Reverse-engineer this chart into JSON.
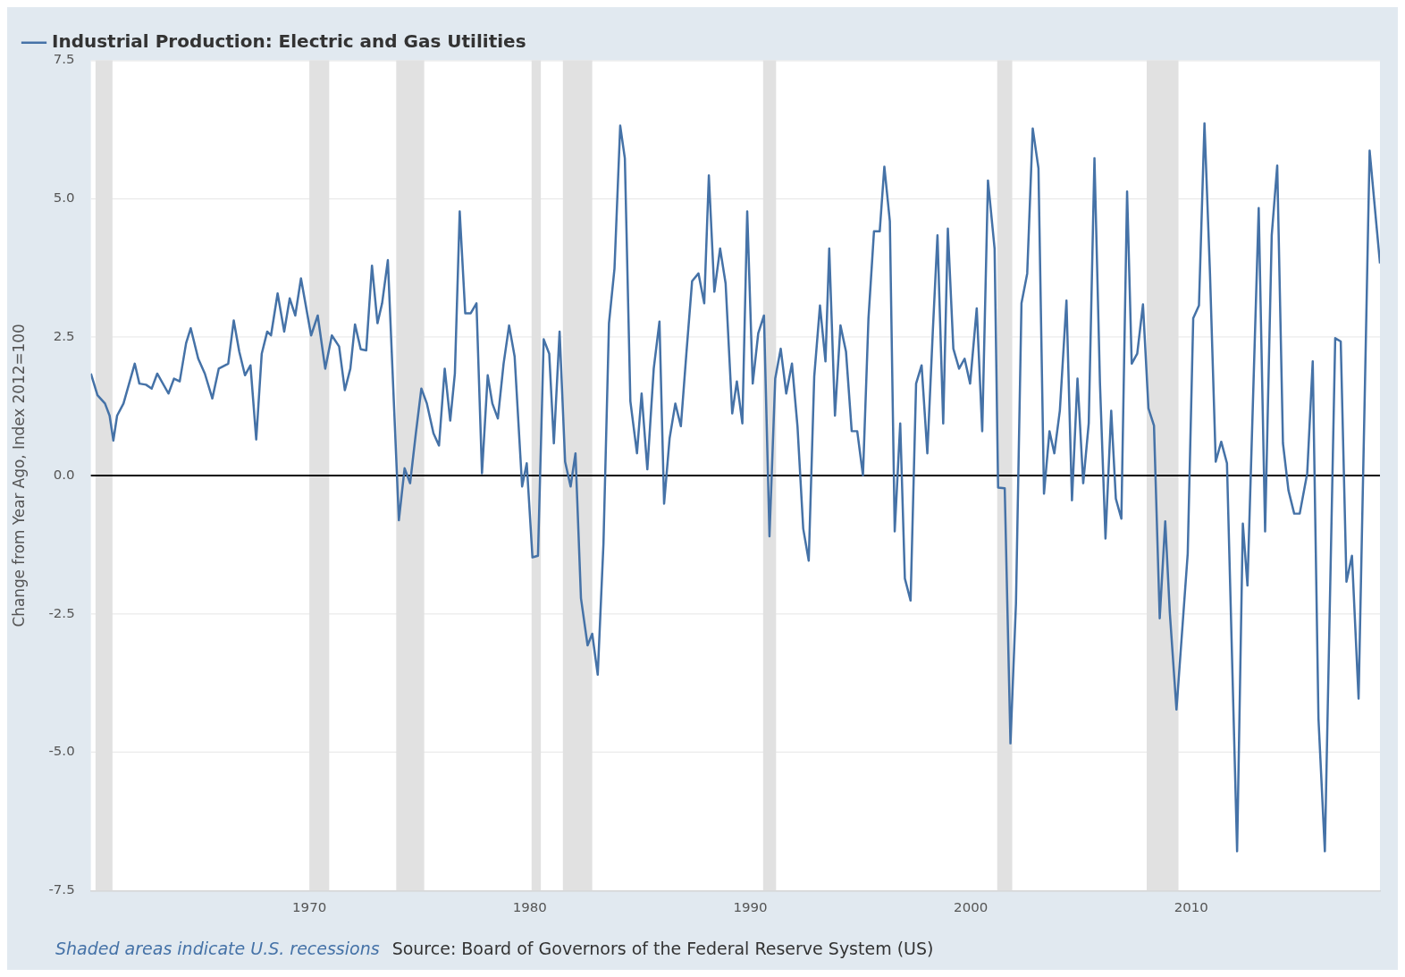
{
  "chart_data": {
    "type": "line",
    "ylabel": "Change from Year Ago, Index 2012=100",
    "xlim": [
      1960.09,
      2018.56
    ],
    "xticks": [
      1970,
      1980,
      1990,
      2000,
      2010
    ],
    "ylim": [
      -7.5,
      7.5
    ],
    "yticks": [
      {
        "value": -7.5,
        "label": "-7.5"
      },
      {
        "value": -5,
        "label": "-5.0"
      },
      {
        "value": -2.5,
        "label": "-2.5"
      },
      {
        "value": 0,
        "label": "0.0"
      },
      {
        "value": 2.5,
        "label": "2.5"
      },
      {
        "value": 5,
        "label": "5.0"
      },
      {
        "value": 7.5,
        "label": "7.5"
      }
    ],
    "grid": "y",
    "legend": "top left",
    "marker": "none",
    "line_style": "solid",
    "series": [
      {
        "name": "Industrial Production: Electric and Gas Utilities",
        "color": "#4572a7",
        "x": [
          1960.09,
          1960.39,
          1960.73,
          1960.94,
          1961.11,
          1961.28,
          1961.57,
          1962.08,
          1962.29,
          1962.59,
          1962.85,
          1963.1,
          1963.61,
          1963.86,
          1964.12,
          1964.41,
          1964.62,
          1964.96,
          1965.26,
          1965.6,
          1965.89,
          1966.32,
          1966.57,
          1966.82,
          1967.08,
          1967.33,
          1967.59,
          1967.84,
          1968.09,
          1968.26,
          1968.56,
          1968.86,
          1969.11,
          1969.36,
          1969.62,
          1970.08,
          1970.38,
          1970.72,
          1971.02,
          1971.35,
          1971.61,
          1971.86,
          1972.07,
          1972.33,
          1972.58,
          1972.84,
          1973.09,
          1973.3,
          1973.56,
          1974.06,
          1974.32,
          1974.57,
          1974.83,
          1975.08,
          1975.33,
          1975.63,
          1975.88,
          1976.14,
          1976.39,
          1976.6,
          1976.82,
          1977.07,
          1977.32,
          1977.58,
          1977.83,
          1978.09,
          1978.3,
          1978.55,
          1978.81,
          1979.06,
          1979.31,
          1979.65,
          1979.86,
          1980.12,
          1980.37,
          1980.63,
          1980.88,
          1981.09,
          1981.35,
          1981.6,
          1981.85,
          1982.07,
          1982.32,
          1982.62,
          1982.83,
          1983.08,
          1983.34,
          1983.59,
          1983.84,
          1984.1,
          1984.31,
          1984.56,
          1984.86,
          1985.07,
          1985.33,
          1985.62,
          1985.88,
          1986.09,
          1986.34,
          1986.6,
          1986.85,
          1987.1,
          1987.36,
          1987.65,
          1987.91,
          1988.12,
          1988.37,
          1988.63,
          1988.88,
          1989.18,
          1989.39,
          1989.64,
          1989.86,
          1990.11,
          1990.36,
          1990.62,
          1990.87,
          1991.13,
          1991.38,
          1991.63,
          1991.89,
          1992.14,
          1992.4,
          1992.65,
          1992.9,
          1993.16,
          1993.41,
          1993.58,
          1993.84,
          1994.09,
          1994.34,
          1994.6,
          1994.85,
          1995.11,
          1995.36,
          1995.61,
          1995.87,
          1996.08,
          1996.33,
          1996.55,
          1996.8,
          1997.01,
          1997.27,
          1997.52,
          1997.77,
          1998.03,
          1998.28,
          1998.49,
          1998.75,
          1998.96,
          1999.21,
          1999.47,
          1999.72,
          1999.97,
          2000.27,
          2000.52,
          2000.78,
          2001.08,
          2001.24,
          2001.54,
          2001.8,
          2002.05,
          2002.3,
          2002.56,
          2002.81,
          2003.07,
          2003.32,
          2003.57,
          2003.79,
          2004.04,
          2004.34,
          2004.59,
          2004.84,
          2005.1,
          2005.35,
          2005.61,
          2005.86,
          2006.11,
          2006.37,
          2006.58,
          2006.83,
          2007.09,
          2007.3,
          2007.55,
          2007.81,
          2008.06,
          2008.31,
          2008.57,
          2008.82,
          2009.03,
          2009.33,
          2009.84,
          2010.09,
          2010.35,
          2010.6,
          2010.85,
          2011.11,
          2011.36,
          2011.62,
          2012.08,
          2012.34,
          2012.55,
          2013.06,
          2013.35,
          2013.65,
          2013.9,
          2014.16,
          2014.41,
          2014.67,
          2014.92,
          2015.26,
          2015.51,
          2015.77,
          2016.06,
          2016.53,
          2016.78,
          2017.04,
          2017.29,
          2017.59,
          2017.88,
          2018.09,
          2018.56
        ],
        "values": [
          1.84,
          1.45,
          1.3,
          1.08,
          0.63,
          1.08,
          1.3,
          2.02,
          1.66,
          1.64,
          1.57,
          1.84,
          1.48,
          1.75,
          1.7,
          2.39,
          2.66,
          2.11,
          1.84,
          1.39,
          1.93,
          2.02,
          2.8,
          2.24,
          1.81,
          1.99,
          0.65,
          2.2,
          2.6,
          2.53,
          3.29,
          2.6,
          3.2,
          2.89,
          3.56,
          2.53,
          2.89,
          1.93,
          2.53,
          2.33,
          1.54,
          1.93,
          2.73,
          2.28,
          2.26,
          3.79,
          2.75,
          3.11,
          3.89,
          -0.81,
          0.13,
          -0.14,
          0.76,
          1.57,
          1.3,
          0.76,
          0.54,
          1.93,
          0.99,
          1.84,
          4.77,
          2.93,
          2.93,
          3.11,
          0.04,
          1.81,
          1.3,
          1.03,
          2.02,
          2.71,
          2.15,
          -0.2,
          0.22,
          -1.48,
          -1.45,
          2.46,
          2.2,
          0.58,
          2.6,
          0.25,
          -0.2,
          0.4,
          -2.22,
          -3.07,
          -2.86,
          -3.6,
          -1.23,
          2.75,
          3.74,
          6.32,
          5.73,
          1.34,
          0.4,
          1.48,
          0.11,
          1.93,
          2.78,
          -0.51,
          0.67,
          1.3,
          0.89,
          2.2,
          3.51,
          3.65,
          3.11,
          5.42,
          3.32,
          4.1,
          3.47,
          1.12,
          1.7,
          0.94,
          4.77,
          1.66,
          2.57,
          2.89,
          -1.1,
          1.75,
          2.29,
          1.48,
          2.02,
          0.89,
          -0.96,
          -1.54,
          1.79,
          3.07,
          2.06,
          4.1,
          1.08,
          2.71,
          2.24,
          0.8,
          0.8,
          0.0,
          2.84,
          4.41,
          4.41,
          5.58,
          4.59,
          -1.01,
          0.94,
          -1.86,
          -2.26,
          1.66,
          1.99,
          0.4,
          2.62,
          4.34,
          0.94,
          4.46,
          2.29,
          1.93,
          2.11,
          1.66,
          3.02,
          0.8,
          5.33,
          4.1,
          -0.22,
          -0.23,
          -4.84,
          -2.31,
          3.11,
          3.65,
          6.27,
          5.55,
          -0.33,
          0.8,
          0.4,
          1.17,
          3.16,
          -0.45,
          1.75,
          -0.14,
          0.94,
          5.73,
          1.66,
          -1.14,
          1.17,
          -0.42,
          -0.78,
          5.13,
          2.02,
          2.2,
          3.09,
          1.21,
          0.9,
          -2.58,
          -0.83,
          -2.49,
          -4.23,
          -1.41,
          2.84,
          3.07,
          6.36,
          3.65,
          0.25,
          0.61,
          0.22,
          -6.79,
          -0.87,
          -1.99,
          4.83,
          -1.01,
          4.34,
          5.6,
          0.58,
          -0.27,
          -0.69,
          -0.69,
          0.04,
          2.06,
          -4.39,
          -6.79,
          2.48,
          2.42,
          -1.92,
          -1.45,
          -4.03,
          1.66,
          5.87,
          3.83
        ]
      }
    ],
    "ref_lines": [
      {
        "axis": "y",
        "value": 0,
        "color": "#000000",
        "line_style": "solid"
      }
    ],
    "bands": [
      {
        "axis": "x",
        "from": 1960.3,
        "to": 1961.07,
        "color": "#e1e1e1"
      },
      {
        "axis": "x",
        "from": 1970.0,
        "to": 1970.9,
        "color": "#e1e1e1"
      },
      {
        "axis": "x",
        "from": 1973.94,
        "to": 1975.21,
        "color": "#e1e1e1"
      },
      {
        "axis": "x",
        "from": 1980.08,
        "to": 1980.5,
        "color": "#e1e1e1"
      },
      {
        "axis": "x",
        "from": 1981.5,
        "to": 1982.83,
        "color": "#e1e1e1"
      },
      {
        "axis": "x",
        "from": 1990.58,
        "to": 1991.17,
        "color": "#e1e1e1"
      },
      {
        "axis": "x",
        "from": 2001.2,
        "to": 2001.88,
        "color": "#e1e1e1"
      },
      {
        "axis": "x",
        "from": 2007.98,
        "to": 2009.42,
        "color": "#e1e1e1"
      }
    ],
    "annotations": [
      "Shaded areas indicate U.S. recessions",
      "Source: Board of Governors of the Federal Reserve System (US)"
    ]
  }
}
